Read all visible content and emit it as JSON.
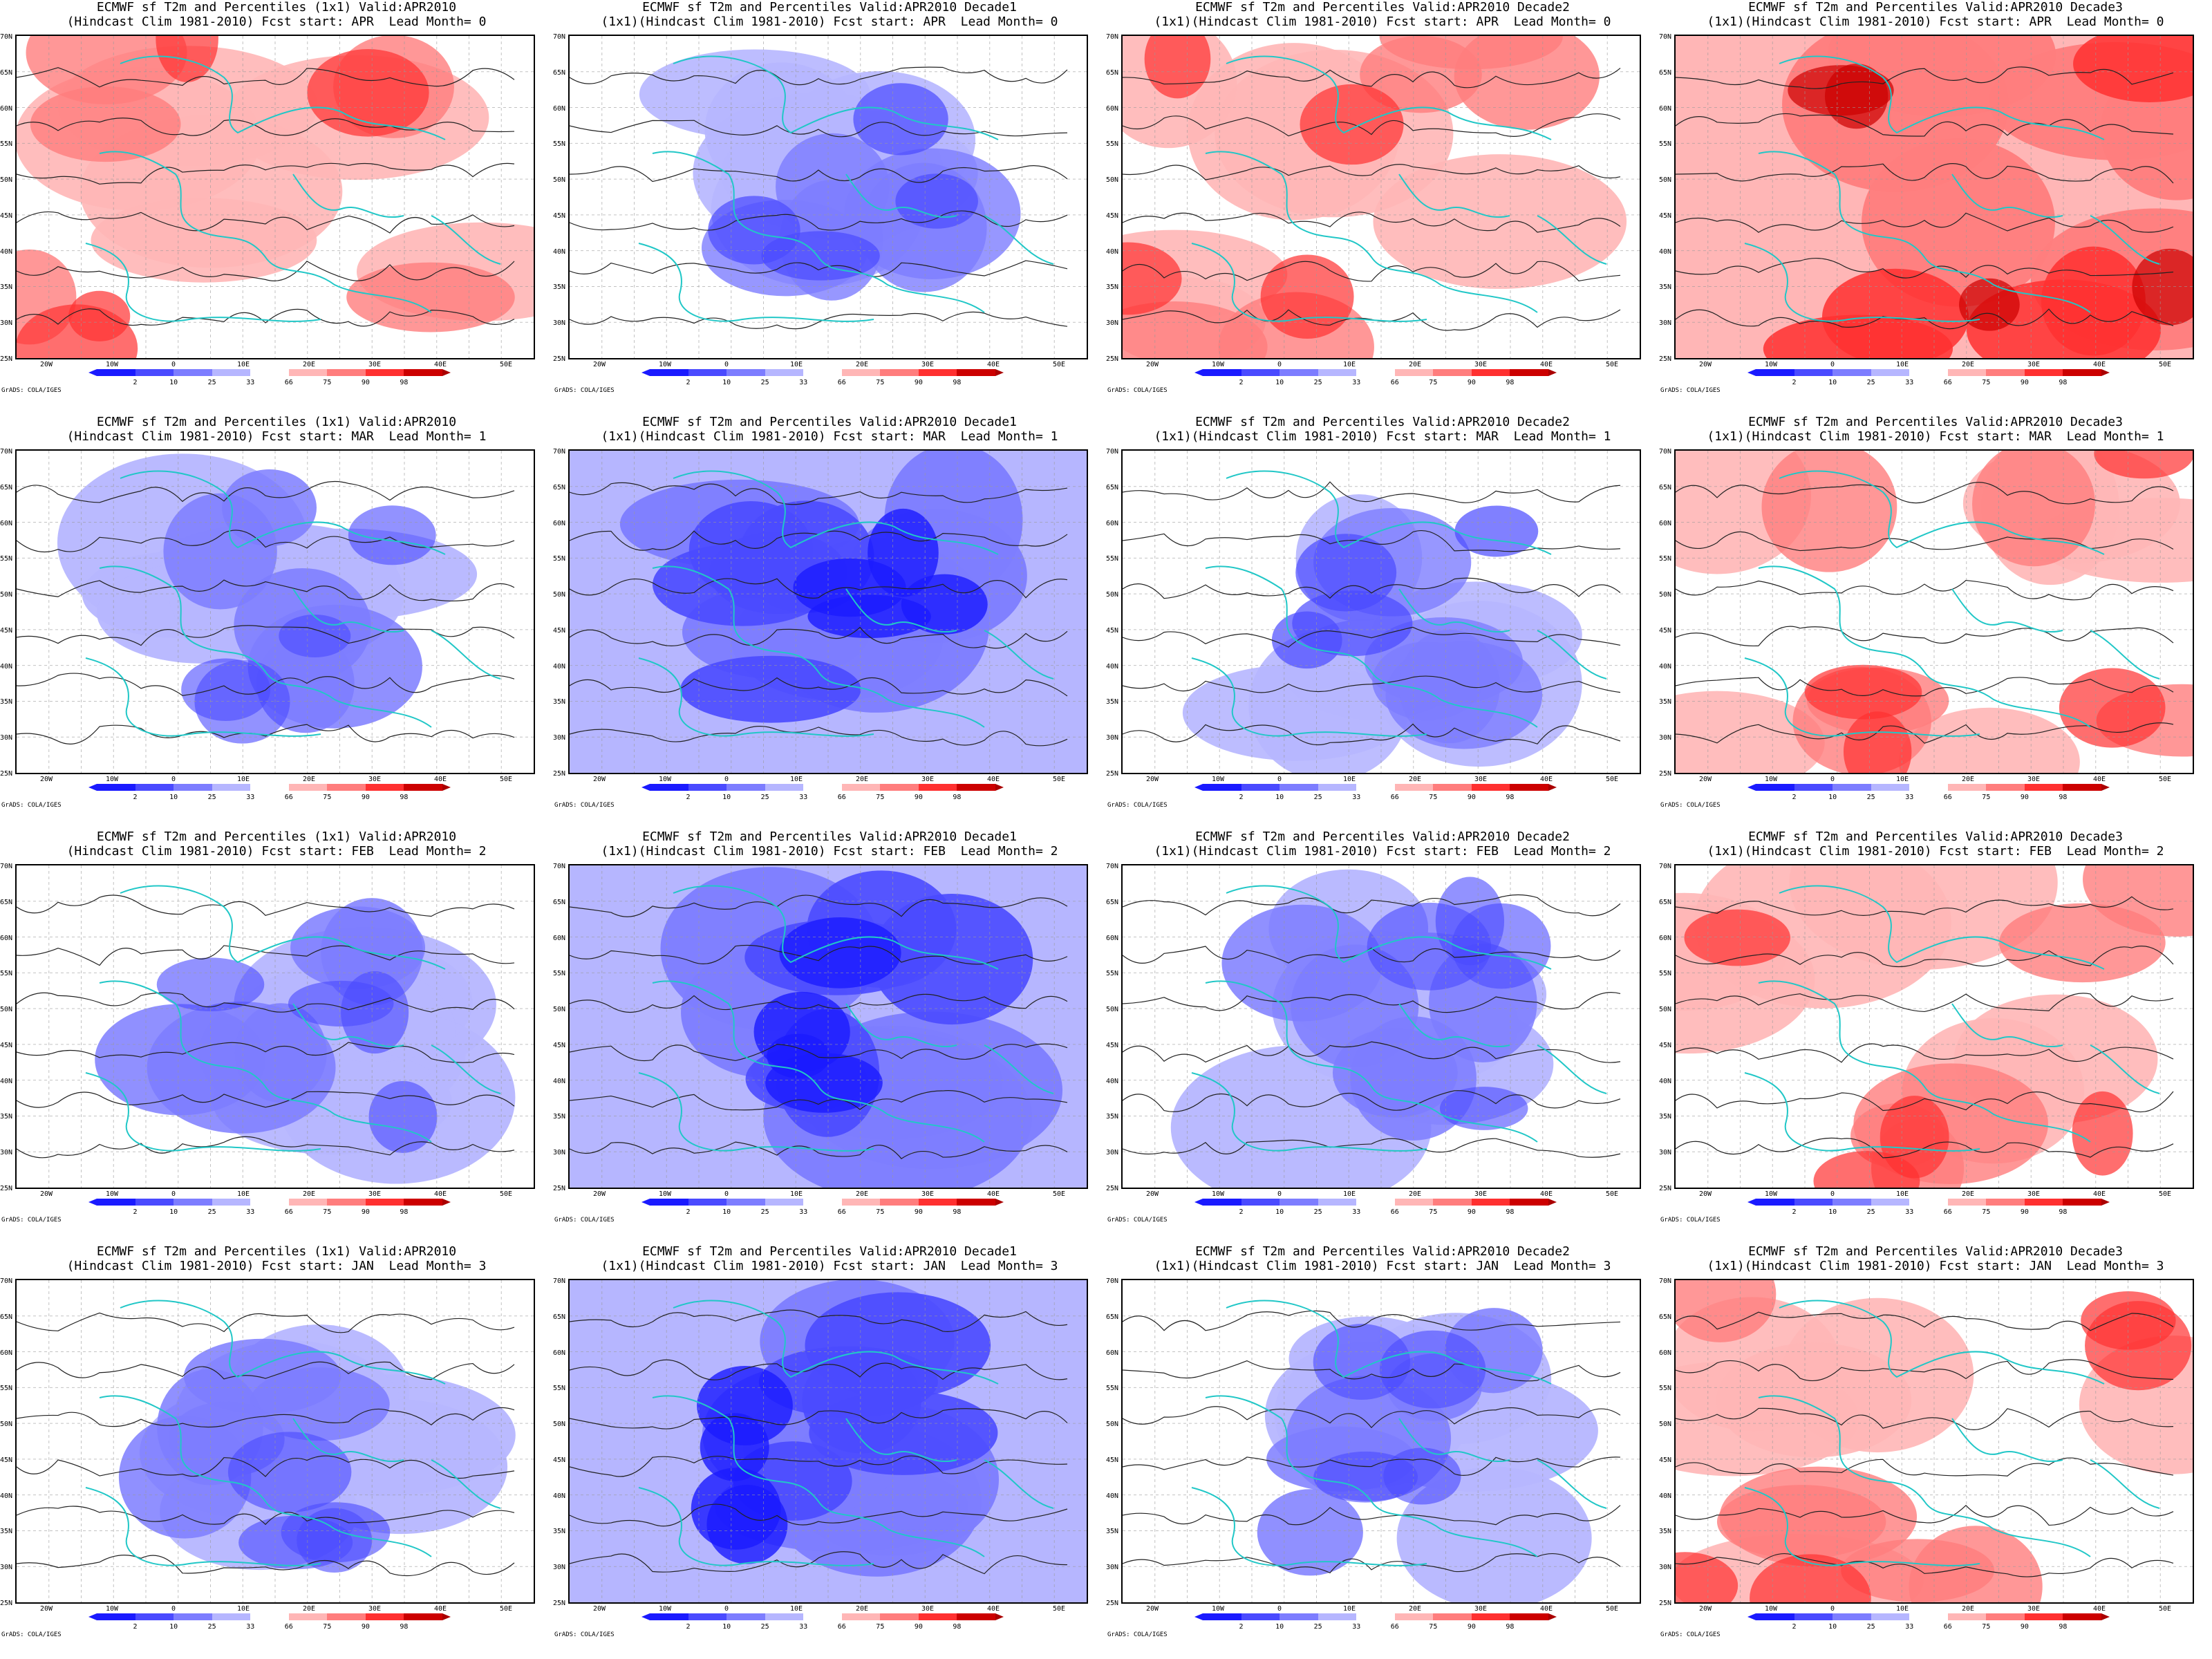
{
  "colorbar": {
    "ticks": [
      "2",
      "10",
      "25",
      "33",
      "66",
      "75",
      "90",
      "98"
    ],
    "colors": [
      "#1a1aff",
      "#4a4aff",
      "#7d7dff",
      "#b6b6ff",
      "#ffffff",
      "#ffb6b6",
      "#ff7d7d",
      "#ff3030",
      "#cc0000"
    ]
  },
  "lat_labels": [
    "70N",
    "65N",
    "60N",
    "55N",
    "50N",
    "45N",
    "40N",
    "35N",
    "30N",
    "25N"
  ],
  "lon_labels": [
    "20W",
    "10W",
    "0",
    "10E",
    "20E",
    "30E",
    "40E",
    "50E"
  ],
  "credit": "GrADS: COLA/IGES",
  "rows": [
    {
      "lead": "APR",
      "lead_month": "0",
      "titles": [
        [
          "ECMWF sf T2m and Percentiles (1x1) Valid:APR2010",
          "(Hindcast Clim 1981-2010) Fcst start: APR  Lead Month= 0"
        ],
        [
          "ECMWF sf T2m and Percentiles Valid:APR2010 Decade1",
          "(1x1)(Hindcast Clim 1981-2010) Fcst start: APR  Lead Month= 0"
        ],
        [
          "ECMWF sf T2m and Percentiles Valid:APR2010 Decade2",
          "(1x1)(Hindcast Clim 1981-2010) Fcst start: APR  Lead Month= 0"
        ],
        [
          "ECMWF sf T2m and Percentiles Valid:APR2010 Decade3",
          "(1x1)(Hindcast Clim 1981-2010) Fcst start: APR  Lead Month= 0"
        ]
      ]
    },
    {
      "lead": "MAR",
      "lead_month": "1",
      "titles": [
        [
          "ECMWF sf T2m and Percentiles (1x1) Valid:APR2010",
          "(Hindcast Clim 1981-2010) Fcst start: MAR  Lead Month= 1"
        ],
        [
          "ECMWF sf T2m and Percentiles Valid:APR2010 Decade1",
          "(1x1)(Hindcast Clim 1981-2010) Fcst start: MAR  Lead Month= 1"
        ],
        [
          "ECMWF sf T2m and Percentiles Valid:APR2010 Decade2",
          "(1x1)(Hindcast Clim 1981-2010) Fcst start: MAR  Lead Month= 1"
        ],
        [
          "ECMWF sf T2m and Percentiles Valid:APR2010 Decade3",
          "(1x1)(Hindcast Clim 1981-2010) Fcst start: MAR  Lead Month= 1"
        ]
      ]
    },
    {
      "lead": "FEB",
      "lead_month": "2",
      "titles": [
        [
          "ECMWF sf T2m and Percentiles (1x1) Valid:APR2010",
          "(Hindcast Clim 1981-2010) Fcst start: FEB  Lead Month= 2"
        ],
        [
          "ECMWF sf T2m and Percentiles Valid:APR2010 Decade1",
          "(1x1)(Hindcast Clim 1981-2010) Fcst start: FEB  Lead Month= 2"
        ],
        [
          "ECMWF sf T2m and Percentiles Valid:APR2010 Decade2",
          "(1x1)(Hindcast Clim 1981-2010) Fcst start: FEB  Lead Month= 2"
        ],
        [
          "ECMWF sf T2m and Percentiles Valid:APR2010 Decade3",
          "(1x1)(Hindcast Clim 1981-2010) Fcst start: FEB  Lead Month= 2"
        ]
      ]
    },
    {
      "lead": "JAN",
      "lead_month": "3",
      "titles": [
        [
          "ECMWF sf T2m and Percentiles (1x1) Valid:APR2010",
          "(Hindcast Clim 1981-2010) Fcst start: JAN  Lead Month= 3"
        ],
        [
          "ECMWF sf T2m and Percentiles Valid:APR2010 Decade1",
          "(1x1)(Hindcast Clim 1981-2010) Fcst start: JAN  Lead Month= 3"
        ],
        [
          "ECMWF sf T2m and Percentiles Valid:APR2010 Decade2",
          "(1x1)(Hindcast Clim 1981-2010) Fcst start: JAN  Lead Month= 3"
        ],
        [
          "ECMWF sf T2m and Percentiles Valid:APR2010 Decade3",
          "(1x1)(Hindcast Clim 1981-2010) Fcst start: JAN  Lead Month= 3"
        ]
      ]
    }
  ],
  "panel_anomaly": [
    [
      "warm",
      "cold",
      "warm",
      "hot"
    ],
    [
      "mild-cold",
      "strong-cold",
      "cold",
      "warm"
    ],
    [
      "mild-cold",
      "strong-cold",
      "mild-cold",
      "warm"
    ],
    [
      "mild-cold",
      "strong-cold",
      "mild-cold",
      "warm"
    ]
  ]
}
